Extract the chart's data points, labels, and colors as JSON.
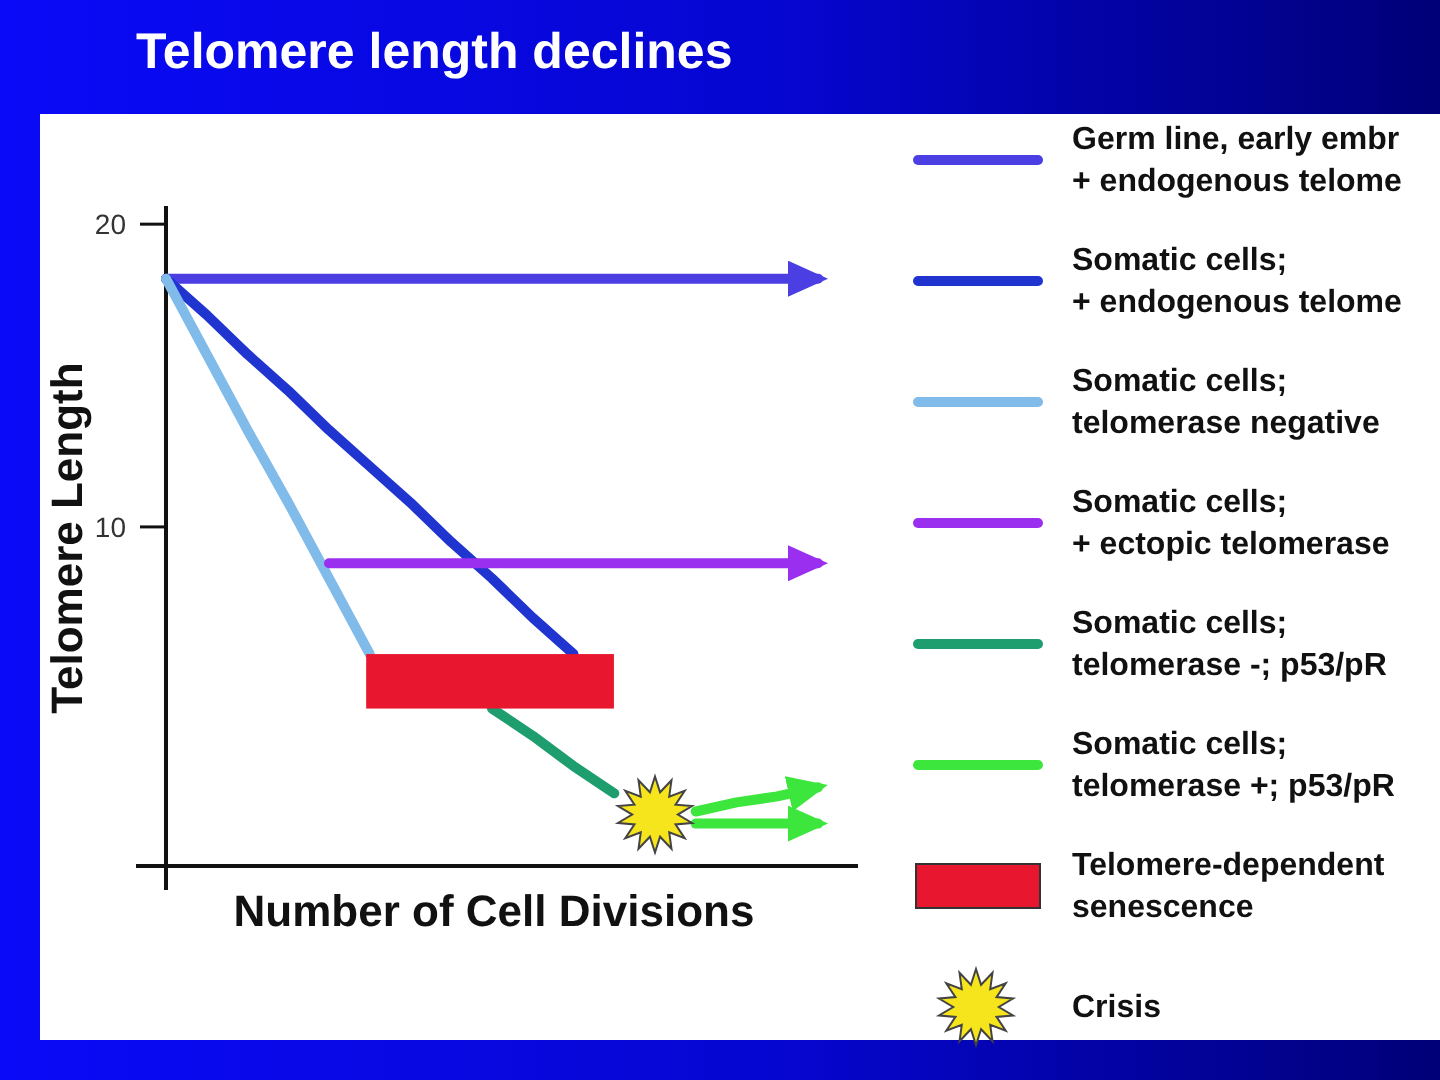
{
  "chart_data": {
    "type": "line",
    "title": "Telomere length declines",
    "xlabel": "Number of Cell Divisions",
    "ylabel": "Telomere Length",
    "categories": [
      null,
      null,
      null,
      null,
      null,
      null,
      null,
      null,
      null,
      null,
      null,
      null,
      null,
      null,
      null,
      null,
      null
    ],
    "ylim": [
      -1.2,
      20.6
    ],
    "yticks": [
      10,
      20
    ],
    "tick_labels": "y",
    "legend": "right",
    "bands": [
      {
        "axis": "y",
        "from": 4.0,
        "to": 5.8,
        "label": "Telomere-dependent\nsenescence",
        "color": "#e8162e"
      }
    ],
    "series": [
      {
        "name": "Germ line, early embr\n+ endogenous telome",
        "color": "#4b3fe4",
        "values": [
          18.2,
          18.2,
          18.2,
          18.2,
          18.2,
          18.2,
          18.2,
          18.2,
          18.2,
          18.2,
          18.2,
          18.2,
          18.2,
          18.2,
          18.2,
          18.2,
          18.2
        ]
      },
      {
        "name": "Somatic cells;\n+ endogenous telome",
        "color": "#2035d0",
        "values": [
          18.2,
          17.0,
          15.7,
          14.5,
          13.2,
          12.0,
          10.8,
          9.5,
          8.3,
          7.0,
          5.8,
          null,
          null,
          null,
          null,
          null,
          null
        ]
      },
      {
        "name": "Somatic cells;\ntelomerase negative",
        "color": "#80bbea",
        "values": [
          18.2,
          15.7,
          13.2,
          10.8,
          8.3,
          5.8,
          null,
          null,
          null,
          null,
          null,
          null,
          null,
          null,
          null,
          null,
          null
        ]
      },
      {
        "name": "Somatic cells;\n+ ectopic telomerase",
        "color": "#9a2ff0",
        "values": [
          null,
          null,
          null,
          null,
          8.8,
          8.8,
          8.8,
          8.8,
          8.8,
          8.8,
          8.8,
          8.8,
          8.8,
          8.8,
          8.8,
          8.8,
          8.8
        ]
      },
      {
        "name": "Somatic cells;\ntelomerase -; p53/pR",
        "color": "#1e9e6e",
        "values": [
          null,
          null,
          null,
          null,
          null,
          null,
          null,
          null,
          4.0,
          3.1,
          2.1,
          1.2,
          null,
          null,
          null,
          null,
          null
        ]
      },
      {
        "name": "Somatic cells;\ntelomerase +; p53/pR",
        "color": "#3ce63c",
        "values": [
          null,
          null,
          null,
          null,
          null,
          null,
          null,
          null,
          null,
          null,
          null,
          null,
          null,
          0.6,
          0.9,
          1.1,
          1.4
        ]
      },
      {
        "type": "scatter",
        "name": "Crisis",
        "color": "#f6e41c",
        "marker": "star",
        "values": [
          null,
          null,
          null,
          null,
          null,
          null,
          null,
          null,
          null,
          null,
          null,
          null,
          0.5,
          null,
          null,
          null,
          null
        ]
      },
      {
        "color": "#3ce63c",
        "values": [
          null,
          null,
          null,
          null,
          null,
          null,
          null,
          null,
          null,
          null,
          null,
          null,
          null,
          0.2,
          0.2,
          0.2,
          0.2
        ]
      }
    ]
  }
}
